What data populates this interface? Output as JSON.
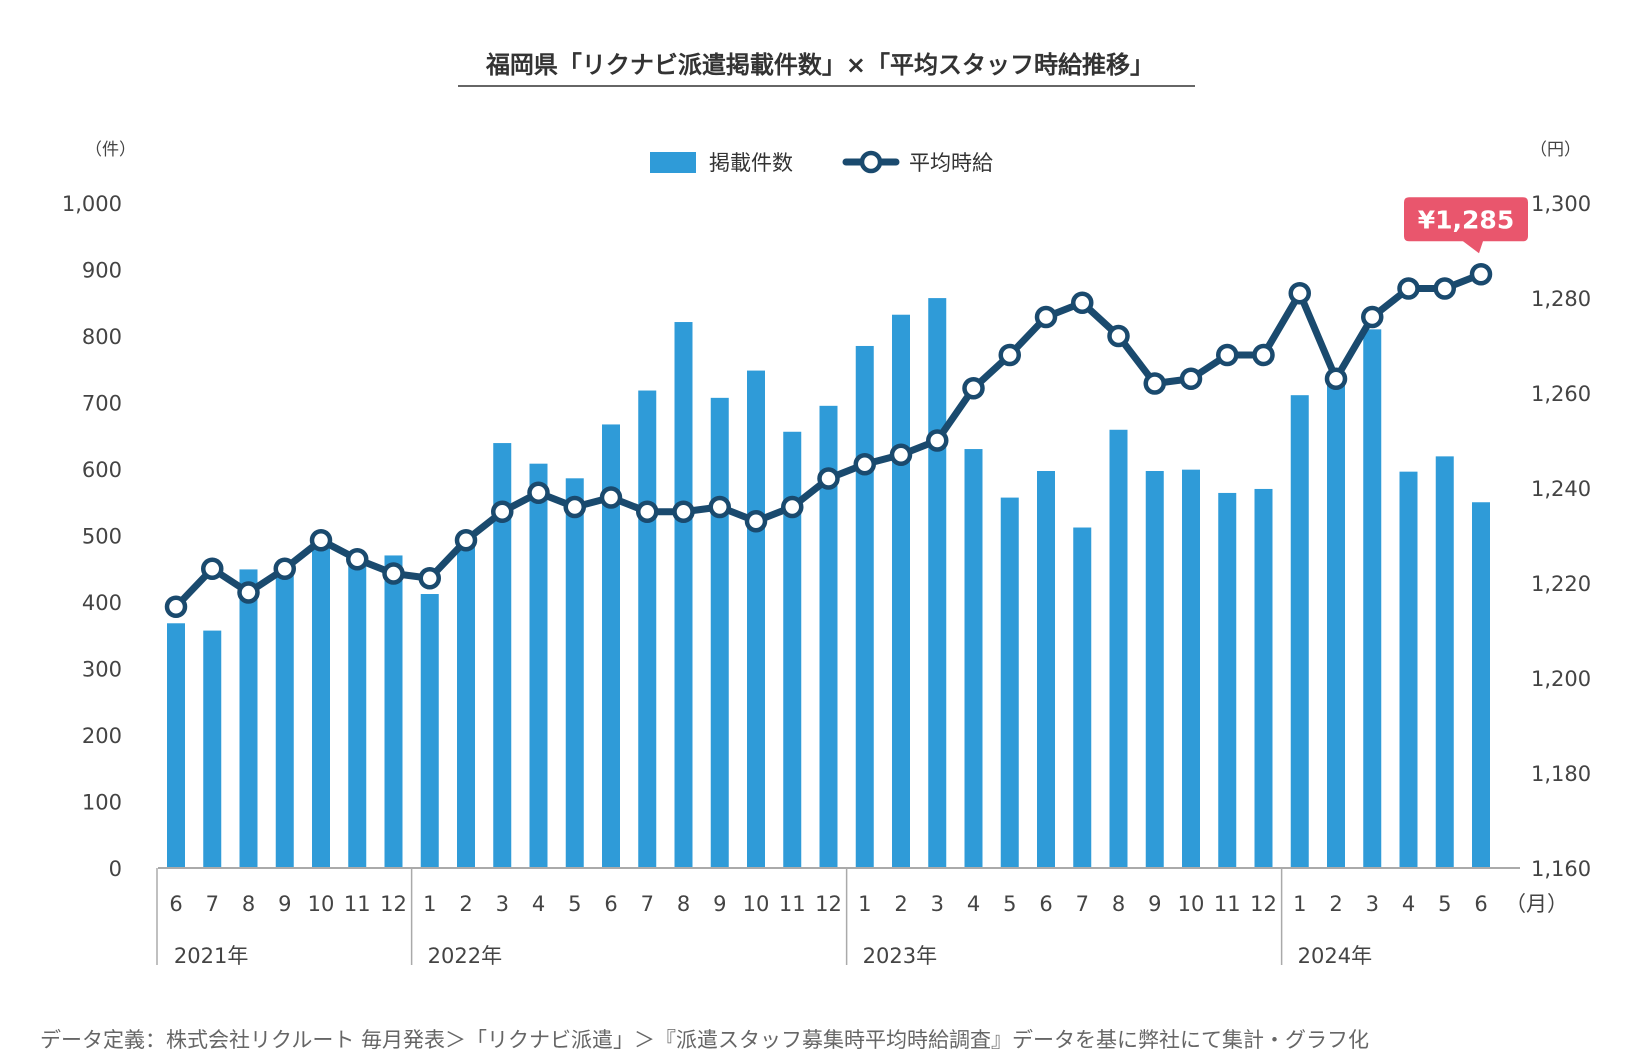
{
  "chart_data": {
    "type": "bar+line",
    "title": "福岡県「リクナビ派遣掲載件数」×「平均スタッフ時給推移」",
    "left_axis_unit": "（件）",
    "right_axis_unit": "（円）",
    "x_unit": "（月）",
    "left_ticks": [
      "0",
      "100",
      "200",
      "300",
      "400",
      "500",
      "600",
      "700",
      "800",
      "900",
      "1,000"
    ],
    "right_ticks": [
      "1,160",
      "1,180",
      "1,200",
      "1,220",
      "1,240",
      "1,260",
      "1,280",
      "1,300"
    ],
    "ylim_left": [
      0,
      1000
    ],
    "ylim_right": [
      1160,
      1300
    ],
    "months": [
      "6",
      "7",
      "8",
      "9",
      "10",
      "11",
      "12",
      "1",
      "2",
      "3",
      "4",
      "5",
      "6",
      "7",
      "8",
      "9",
      "10",
      "11",
      "12",
      "1",
      "2",
      "3",
      "4",
      "5",
      "6",
      "7",
      "8",
      "9",
      "10",
      "11",
      "12",
      "1",
      "2",
      "3",
      "4",
      "5",
      "6"
    ],
    "years": [
      {
        "label": "2021年",
        "start": 0,
        "count": 7
      },
      {
        "label": "2022年",
        "start": 7,
        "count": 12
      },
      {
        "label": "2023年",
        "start": 19,
        "count": 12
      },
      {
        "label": "2024年",
        "start": 31,
        "count": 6
      }
    ],
    "series": [
      {
        "name": "掲載件数",
        "type": "bar",
        "axis": "left",
        "color": "#2f9bd8",
        "values": [
          368,
          357,
          449,
          443,
          485,
          463,
          470,
          412,
          495,
          639,
          608,
          586,
          667,
          718,
          821,
          707,
          748,
          656,
          695,
          785,
          832,
          857,
          630,
          557,
          597,
          512,
          659,
          597,
          599,
          564,
          570,
          711,
          732,
          810,
          596,
          619,
          550
        ]
      },
      {
        "name": "平均時給",
        "type": "line",
        "axis": "right",
        "color": "#1a4a6e",
        "values": [
          1215,
          1223,
          1218,
          1223,
          1229,
          1225,
          1222,
          1221,
          1229,
          1235,
          1239,
          1236,
          1238,
          1235,
          1235,
          1236,
          1233,
          1236,
          1242,
          1245,
          1247,
          1250,
          1261,
          1268,
          1276,
          1279,
          1272,
          1262,
          1263,
          1268,
          1268,
          1281,
          1263,
          1276,
          1282,
          1282,
          1285
        ]
      }
    ],
    "callout": "¥1,285",
    "callout_color": "#e9566d",
    "footnote": "データ定義：株式会社リクルート 毎月発表＞「リクナビ派遣」＞『派遣スタッフ募集時平均時給調査』データを基に弊社にて集計・グラフ化"
  }
}
